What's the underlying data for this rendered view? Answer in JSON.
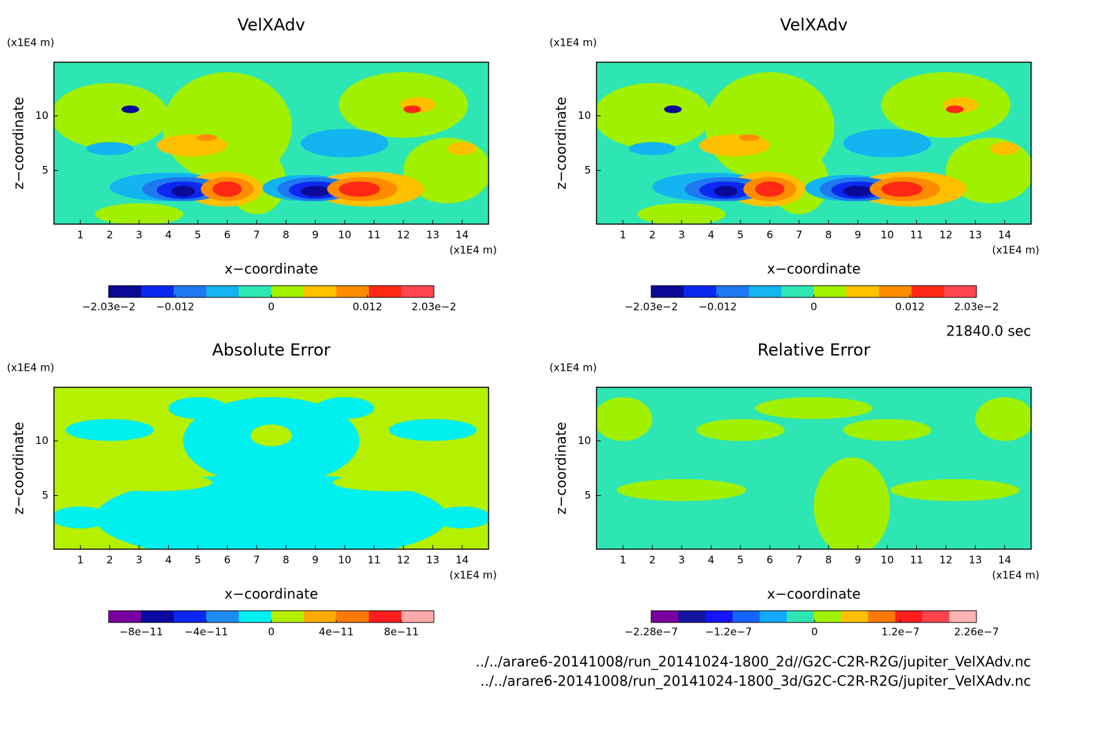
{
  "panels": [
    {
      "title": "VelXAdv",
      "xlabel": "x−coordinate",
      "ylabel": "z−coordinate",
      "xunit": "(x1E4 m)",
      "yunit": "(x1E4 m)",
      "xlim": [
        0.1,
        14.9
      ],
      "ylim": [
        0.1,
        14.9
      ],
      "xticks": [
        1,
        2,
        3,
        4,
        5,
        6,
        7,
        8,
        9,
        10,
        11,
        12,
        13,
        14
      ],
      "yticks": [
        5,
        10
      ],
      "colorbar": {
        "clim": [
          -0.0203,
          0.0203
        ],
        "colors": [
          "#0a0a96",
          "#0a28f0",
          "#1e78f0",
          "#14b4f0",
          "#2ee6b4",
          "#a0f000",
          "#ffc000",
          "#ff8c00",
          "#ff2814",
          "#ff4650"
        ],
        "ticks": [
          {
            "value": -0.0203,
            "label": "−2.03e−2"
          },
          {
            "value": -0.012,
            "label": "−0.012"
          },
          0,
          {
            "value": 0.012,
            "label": "0.012"
          },
          {
            "value": 0.0203,
            "label": "2.03e−2"
          }
        ]
      }
    },
    {
      "title": "VelXAdv",
      "xlabel": "x−coordinate",
      "ylabel": "z−coordinate",
      "xunit": "(x1E4 m)",
      "yunit": "(x1E4 m)",
      "xlim": [
        0.1,
        14.9
      ],
      "ylim": [
        0.1,
        14.9
      ],
      "xticks": [
        1,
        2,
        3,
        4,
        5,
        6,
        7,
        8,
        9,
        10,
        11,
        12,
        13,
        14
      ],
      "yticks": [
        5,
        10
      ],
      "colorbar": {
        "clim": [
          -0.0203,
          0.0203
        ],
        "colors": [
          "#0a0a96",
          "#0a28f0",
          "#1e78f0",
          "#14b4f0",
          "#2ee6b4",
          "#a0f000",
          "#ffc000",
          "#ff8c00",
          "#ff2814",
          "#ff4650"
        ],
        "ticks": [
          {
            "value": -0.0203,
            "label": "−2.03e−2"
          },
          {
            "value": -0.012,
            "label": "−0.012"
          },
          0,
          {
            "value": 0.012,
            "label": "0.012"
          },
          {
            "value": 0.0203,
            "label": "2.03e−2"
          }
        ]
      }
    },
    {
      "title": "Absolute Error",
      "xlabel": "x−coordinate",
      "ylabel": "z−coordinate",
      "xunit": "(x1E4 m)",
      "yunit": "(x1E4 m)",
      "xlim": [
        0.1,
        14.9
      ],
      "ylim": [
        0.1,
        14.9
      ],
      "xticks": [
        1,
        2,
        3,
        4,
        5,
        6,
        7,
        8,
        9,
        10,
        11,
        12,
        13,
        14
      ],
      "yticks": [
        5,
        10
      ],
      "colorbar": {
        "clim": [
          -1e-10,
          1e-10
        ],
        "colors": [
          "#7800a0",
          "#0a0aa0",
          "#0a28f0",
          "#1e8cf0",
          "#00f0f0",
          "#b4f000",
          "#ffaa00",
          "#ff7800",
          "#ff1e1e",
          "#ffaaaa"
        ],
        "ticks": [
          {
            "value": -8e-11,
            "label": "−8e−11"
          },
          {
            "value": -4e-11,
            "label": "−4e−11"
          },
          0,
          {
            "value": 4e-11,
            "label": "4e−11"
          },
          {
            "value": 8e-11,
            "label": "8e−11"
          }
        ]
      }
    },
    {
      "title": "Relative Error",
      "xlabel": "x−coordinate",
      "ylabel": "z−coordinate",
      "xunit": "(x1E4 m)",
      "yunit": "(x1E4 m)",
      "xlim": [
        0.1,
        14.9
      ],
      "ylim": [
        0.1,
        14.9
      ],
      "xticks": [
        1,
        2,
        3,
        4,
        5,
        6,
        7,
        8,
        9,
        10,
        11,
        12,
        13,
        14
      ],
      "yticks": [
        5,
        10
      ],
      "colorbar": {
        "clim": [
          -2.28e-07,
          2.26e-07
        ],
        "colors": [
          "#7800a0",
          "#1414a0",
          "#1414ff",
          "#1464ff",
          "#14aaff",
          "#2ee6b4",
          "#a0f000",
          "#ffc000",
          "#ff7800",
          "#ff1e1e",
          "#ff4650",
          "#ffb4b4"
        ],
        "ticks": [
          {
            "value": -2.28e-07,
            "label": "−2.28e−7"
          },
          {
            "value": -1.2e-07,
            "label": "−1.2e−7"
          },
          0,
          {
            "value": 1.2e-07,
            "label": "1.2e−7"
          },
          {
            "value": 2.26e-07,
            "label": "2.26e−7"
          }
        ]
      }
    }
  ],
  "time": "21840.0 sec",
  "files": [
    "../../arare6-20141008/run_20141024-1800_2d//G2C-C2R-R2G/jupiter_VelXAdv.nc",
    "../../arare6-20141008/run_20141024-1800_3d/G2C-C2R-R2G/jupiter_VelXAdv.nc"
  ]
}
